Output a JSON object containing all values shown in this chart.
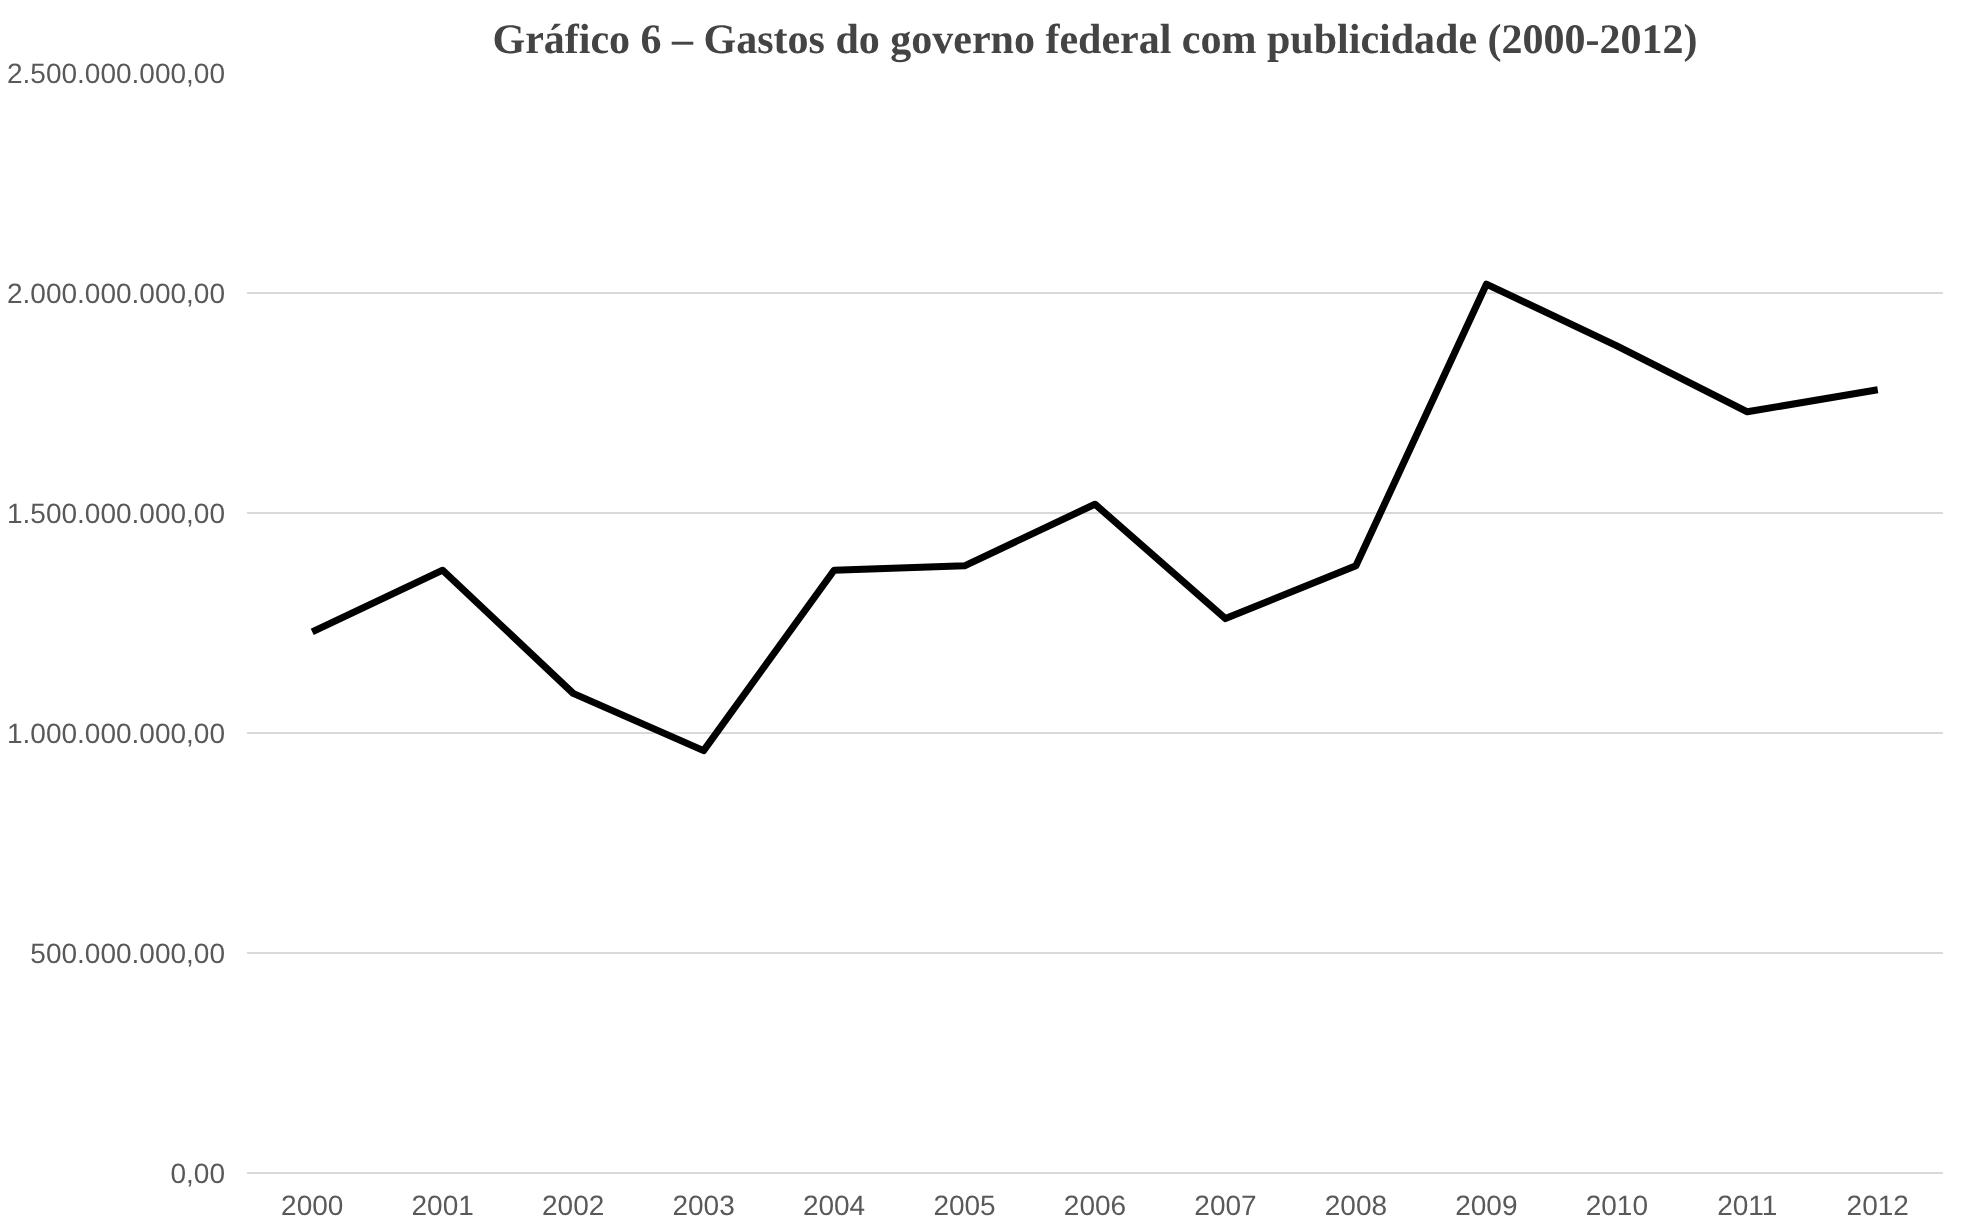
{
  "chart_data": {
    "type": "line",
    "title": "Gráfico 6 – Gastos do governo federal com publicidade (2000-2012)",
    "categories": [
      "2000",
      "2001",
      "2002",
      "2003",
      "2004",
      "2005",
      "2006",
      "2007",
      "2008",
      "2009",
      "2010",
      "2011",
      "2012"
    ],
    "series": [
      {
        "color": "#000000",
        "values": [
          1230000000,
          1370000000,
          1090000000,
          960000000,
          1370000000,
          1380000000,
          1520000000,
          1260000000,
          1380000000,
          2020000000,
          1880000000,
          1730000000,
          1780000000
        ]
      }
    ],
    "ylim": [
      0,
      2500000000
    ],
    "yticks": [
      {
        "value": 0,
        "label": "0,00"
      },
      {
        "value": 500000000,
        "label": "500.000.000,00"
      },
      {
        "value": 1000000000,
        "label": "1.000.000.000,00"
      },
      {
        "value": 1500000000,
        "label": "1.500.000.000,00"
      },
      {
        "value": 2000000000,
        "label": "2.000.000.000,00"
      },
      {
        "value": 2500000000,
        "label": "2.500.000.000,00"
      }
    ],
    "grid": "y",
    "marker": "none",
    "line_style": "solid"
  }
}
